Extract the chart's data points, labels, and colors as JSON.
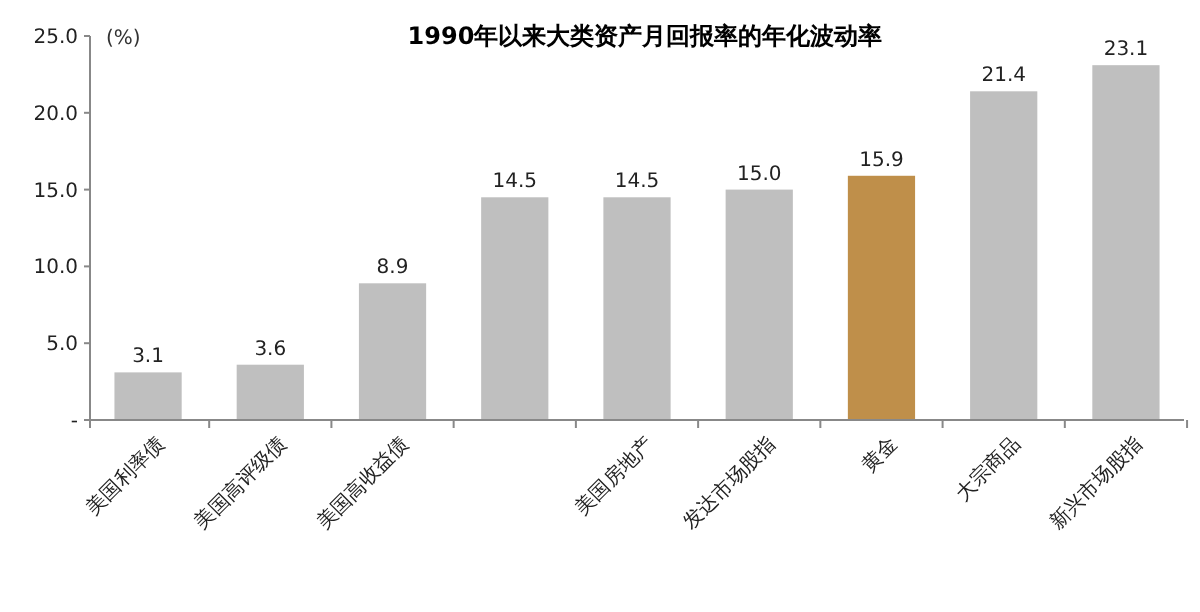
{
  "chart_data": {
    "type": "bar",
    "title": "1990年以来大类资产月回报率的年化波动率",
    "ylabel": "(%)",
    "categories": [
      "美国利率债",
      "美国高评级债",
      "美国高收益债",
      null,
      "美国房地产",
      "发达市场股指",
      "黄金",
      "大宗商品",
      "新兴市场股指"
    ],
    "values": [
      3.1,
      3.6,
      8.9,
      14.5,
      14.5,
      15.0,
      15.9,
      21.4,
      23.1
    ],
    "value_labels": [
      "3.1",
      "3.6",
      "8.9",
      "14.5",
      "14.5",
      "15.0",
      "15.9",
      "21.4",
      "23.1"
    ],
    "colors": [
      "#bfbfbf",
      "#bfbfbf",
      "#bfbfbf",
      "#bfbfbf",
      "#bfbfbf",
      "#bfbfbf",
      "#bf8f4a",
      "#bfbfbf",
      "#bfbfbf"
    ],
    "ylim": [
      0,
      25
    ],
    "yticks": [
      {
        "value": 0,
        "label": "-"
      },
      {
        "value": 5,
        "label": "5.0"
      },
      {
        "value": 10,
        "label": "10.0"
      },
      {
        "value": 15,
        "label": "15.0"
      },
      {
        "value": 20,
        "label": "20.0"
      },
      {
        "value": 25,
        "label": "25.0"
      }
    ],
    "grid": false
  }
}
